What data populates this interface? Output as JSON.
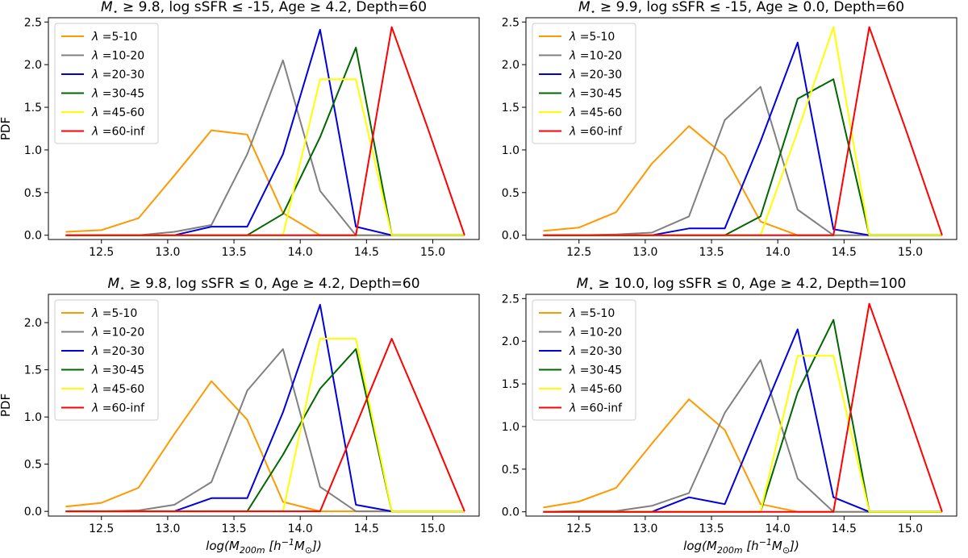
{
  "chart_data": [
    {
      "type": "line",
      "title": "M⋆ ≥ 9.8, log sSFR ≤ -15, Age ≥ 4.2, Depth=60",
      "title_parts": {
        "lhs": "M",
        "sub": "⋆",
        "rest": " ≥ 9.8, log sSFR ≤ -15, Age ≥ 4.2, Depth=60"
      },
      "xlabel": "",
      "ylabel": "PDF",
      "xlim": [
        12.1,
        15.35
      ],
      "ylim": [
        -0.05,
        2.55
      ],
      "xticks": [
        "12.5",
        "13.0",
        "13.5",
        "14.0",
        "14.5",
        "15.0"
      ],
      "yticks": [
        "0.0",
        "0.5",
        "1.0",
        "1.5",
        "2.0",
        "2.5"
      ],
      "legend_position": "upper-left",
      "x": [
        12.23,
        12.5,
        12.78,
        13.05,
        13.33,
        13.6,
        13.87,
        14.15,
        14.42,
        14.69,
        14.97,
        15.24
      ],
      "series": [
        {
          "name": "λ =5-10",
          "color": "#ff9900",
          "values": [
            0.04,
            0.06,
            0.2,
            0.7,
            1.23,
            1.18,
            0.26,
            0.0,
            0.0,
            0.0,
            0.0,
            0.0
          ]
        },
        {
          "name": "λ =10-20",
          "color": "#808080",
          "values": [
            0.0,
            0.0,
            0.0,
            0.04,
            0.12,
            0.95,
            2.05,
            0.52,
            0.0,
            0.0,
            0.0,
            0.0
          ]
        },
        {
          "name": "λ =20-30",
          "color": "#0000dd",
          "values": [
            0.0,
            0.0,
            0.0,
            0.0,
            0.1,
            0.1,
            0.95,
            2.41,
            0.1,
            0.0,
            0.0,
            0.0
          ]
        },
        {
          "name": "λ =30-45",
          "color": "#006600",
          "values": [
            0.0,
            0.0,
            0.0,
            0.0,
            0.0,
            0.0,
            0.25,
            1.15,
            2.2,
            0.0,
            0.0,
            0.0
          ]
        },
        {
          "name": "λ =45-60",
          "color": "#ffff00",
          "values": [
            0.0,
            0.0,
            0.0,
            0.0,
            0.0,
            0.0,
            0.0,
            1.83,
            1.83,
            0.0,
            0.0,
            0.0
          ]
        },
        {
          "name": "λ =60-inf",
          "color": "#ff0000",
          "values": [
            0.0,
            0.0,
            0.0,
            0.0,
            0.0,
            0.0,
            0.0,
            0.0,
            0.0,
            2.44,
            1.22,
            0.0
          ]
        }
      ]
    },
    {
      "type": "line",
      "title": "M⋆ ≥ 9.9, log sSFR ≤ -15, Age ≥ 0.0, Depth=60",
      "title_parts": {
        "lhs": "M",
        "sub": "⋆",
        "rest": " ≥ 9.9, log sSFR ≤ -15, Age ≥ 0.0, Depth=60"
      },
      "xlabel": "",
      "ylabel": "",
      "xlim": [
        12.1,
        15.35
      ],
      "ylim": [
        -0.05,
        2.55
      ],
      "xticks": [
        "12.5",
        "13.0",
        "13.5",
        "14.0",
        "14.5",
        "15.0"
      ],
      "yticks": [
        "0.0",
        "0.5",
        "1.0",
        "1.5",
        "2.0",
        "2.5"
      ],
      "legend_position": "upper-left",
      "x": [
        12.23,
        12.5,
        12.78,
        13.05,
        13.33,
        13.6,
        13.87,
        14.15,
        14.42,
        14.69,
        14.97,
        15.24
      ],
      "series": [
        {
          "name": "λ =5-10",
          "color": "#ff9900",
          "values": [
            0.05,
            0.09,
            0.27,
            0.84,
            1.28,
            0.93,
            0.16,
            0.0,
            0.0,
            0.0,
            0.0,
            0.0
          ]
        },
        {
          "name": "λ =10-20",
          "color": "#808080",
          "values": [
            0.0,
            0.0,
            0.01,
            0.03,
            0.22,
            1.35,
            1.74,
            0.3,
            0.0,
            0.0,
            0.0,
            0.0
          ]
        },
        {
          "name": "λ =20-30",
          "color": "#0000dd",
          "values": [
            0.0,
            0.0,
            0.0,
            0.0,
            0.08,
            0.08,
            1.1,
            2.26,
            0.07,
            0.0,
            0.0,
            0.0
          ]
        },
        {
          "name": "λ =30-45",
          "color": "#006600",
          "values": [
            0.0,
            0.0,
            0.0,
            0.0,
            0.0,
            0.0,
            0.22,
            1.6,
            1.83,
            0.0,
            0.0,
            0.0
          ]
        },
        {
          "name": "λ =45-60",
          "color": "#ffff00",
          "values": [
            0.0,
            0.0,
            0.0,
            0.0,
            0.0,
            0.0,
            0.0,
            1.22,
            2.44,
            0.0,
            0.0,
            0.0
          ]
        },
        {
          "name": "λ =60-inf",
          "color": "#ff0000",
          "values": [
            0.0,
            0.0,
            0.0,
            0.0,
            0.0,
            0.0,
            0.0,
            0.0,
            0.0,
            2.44,
            1.22,
            0.0
          ]
        }
      ]
    },
    {
      "type": "line",
      "title": "M⋆ ≥ 9.8, log sSFR ≤ 0, Age ≥ 4.2, Depth=60",
      "title_parts": {
        "lhs": "M",
        "sub": "⋆",
        "rest": " ≥ 9.8, log sSFR ≤ 0, Age ≥ 4.2, Depth=60"
      },
      "xlabel": "log(M200m [h−1M⊙])",
      "ylabel": "PDF",
      "xlim": [
        12.1,
        15.35
      ],
      "ylim": [
        -0.05,
        2.3
      ],
      "xticks": [
        "12.5",
        "13.0",
        "13.5",
        "14.0",
        "14.5",
        "15.0"
      ],
      "yticks": [
        "0.0",
        "0.5",
        "1.0",
        "1.5",
        "2.0"
      ],
      "legend_position": "upper-left",
      "x": [
        12.23,
        12.5,
        12.78,
        13.05,
        13.33,
        13.6,
        13.87,
        14.15,
        14.42,
        14.69,
        14.97,
        15.24
      ],
      "series": [
        {
          "name": "λ =5-10",
          "color": "#ff9900",
          "values": [
            0.05,
            0.09,
            0.25,
            0.82,
            1.38,
            0.97,
            0.1,
            0.0,
            0.0,
            0.0,
            0.0,
            0.0
          ]
        },
        {
          "name": "λ =10-20",
          "color": "#808080",
          "values": [
            0.0,
            0.0,
            0.01,
            0.07,
            0.31,
            1.28,
            1.72,
            0.26,
            0.0,
            0.0,
            0.0,
            0.0
          ]
        },
        {
          "name": "λ =20-30",
          "color": "#0000dd",
          "values": [
            0.0,
            0.0,
            0.0,
            0.0,
            0.14,
            0.14,
            1.05,
            2.19,
            0.07,
            0.0,
            0.0,
            0.0
          ]
        },
        {
          "name": "λ =30-45",
          "color": "#006600",
          "values": [
            0.0,
            0.0,
            0.0,
            0.0,
            0.0,
            0.0,
            0.6,
            1.3,
            1.72,
            0.0,
            0.0,
            0.0
          ]
        },
        {
          "name": "λ =45-60",
          "color": "#ffff00",
          "values": [
            0.0,
            0.0,
            0.0,
            0.0,
            0.0,
            0.0,
            0.0,
            1.83,
            1.83,
            0.0,
            0.0,
            0.0
          ]
        },
        {
          "name": "λ =60-inf",
          "color": "#ff0000",
          "values": [
            0.0,
            0.0,
            0.0,
            0.0,
            0.0,
            0.0,
            0.0,
            0.0,
            0.91,
            1.83,
            0.91,
            0.0
          ]
        }
      ]
    },
    {
      "type": "line",
      "title": "M⋆ ≥ 10.0, log sSFR ≤ 0, Age ≥ 4.2, Depth=100",
      "title_parts": {
        "lhs": "M",
        "sub": "⋆",
        "rest": " ≥ 10.0, log sSFR ≤ 0, Age ≥ 4.2, Depth=100"
      },
      "xlabel": "log(M200m [h−1M⊙])",
      "ylabel": "",
      "xlim": [
        12.1,
        15.35
      ],
      "ylim": [
        -0.05,
        2.55
      ],
      "xticks": [
        "12.5",
        "13.0",
        "13.5",
        "14.0",
        "14.5",
        "15.0"
      ],
      "yticks": [
        "0.0",
        "0.5",
        "1.0",
        "1.5",
        "2.0",
        "2.5"
      ],
      "legend_position": "upper-left",
      "x": [
        12.23,
        12.5,
        12.78,
        13.05,
        13.33,
        13.6,
        13.87,
        14.15,
        14.42,
        14.69,
        14.97,
        15.24
      ],
      "series": [
        {
          "name": "λ =5-10",
          "color": "#ff9900",
          "values": [
            0.05,
            0.12,
            0.28,
            0.8,
            1.32,
            0.96,
            0.09,
            0.0,
            0.0,
            0.0,
            0.0,
            0.0
          ]
        },
        {
          "name": "λ =10-20",
          "color": "#808080",
          "values": [
            0.0,
            0.01,
            0.01,
            0.07,
            0.22,
            1.16,
            1.78,
            0.39,
            0.0,
            0.0,
            0.0,
            0.0
          ]
        },
        {
          "name": "λ =20-30",
          "color": "#0000dd",
          "values": [
            0.0,
            0.0,
            0.0,
            0.0,
            0.17,
            0.09,
            1.1,
            2.14,
            0.17,
            0.0,
            0.0,
            0.0
          ]
        },
        {
          "name": "λ =30-45",
          "color": "#006600",
          "values": [
            0.0,
            0.0,
            0.0,
            0.0,
            0.0,
            0.0,
            0.0,
            1.4,
            2.25,
            0.0,
            0.0,
            0.0
          ]
        },
        {
          "name": "λ =45-60",
          "color": "#ffff00",
          "values": [
            0.0,
            0.0,
            0.0,
            0.0,
            0.0,
            0.0,
            0.0,
            1.83,
            1.83,
            0.0,
            0.0,
            0.0
          ]
        },
        {
          "name": "λ =60-inf",
          "color": "#ff0000",
          "values": [
            0.0,
            0.0,
            0.0,
            0.0,
            0.0,
            0.0,
            0.0,
            0.0,
            0.0,
            2.44,
            1.22,
            0.0
          ]
        }
      ]
    }
  ]
}
